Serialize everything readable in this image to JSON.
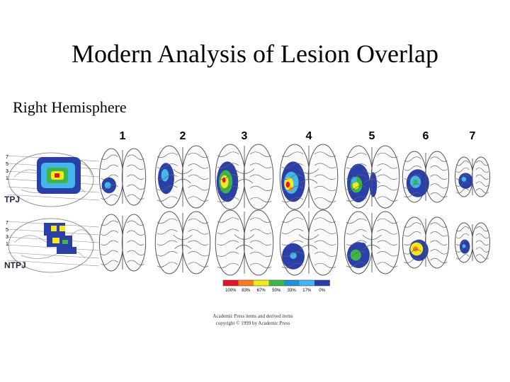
{
  "slide": {
    "title": "Modern Analysis of Lesion Overlap",
    "subtitle": "Right Hemisphere"
  },
  "figure": {
    "columns": [
      "1",
      "2",
      "3",
      "4",
      "5",
      "6",
      "7"
    ],
    "rows": [
      "TPJ",
      "NTPJ"
    ],
    "side_ticks": [
      "7",
      "5",
      "3",
      "1"
    ],
    "legend": [
      "100%",
      "83%",
      "67%",
      "50%",
      "33%",
      "17%",
      "0%"
    ],
    "legend_colors": [
      "#e8102a",
      "#f57f20",
      "#f6e91b",
      "#3db548",
      "#1f8fd6",
      "#43b6ea",
      "#2b3fa8"
    ],
    "copyright_line1": "Academic Press items and derived items",
    "copyright_line2": "copyright © 1999 by Academic Press"
  }
}
